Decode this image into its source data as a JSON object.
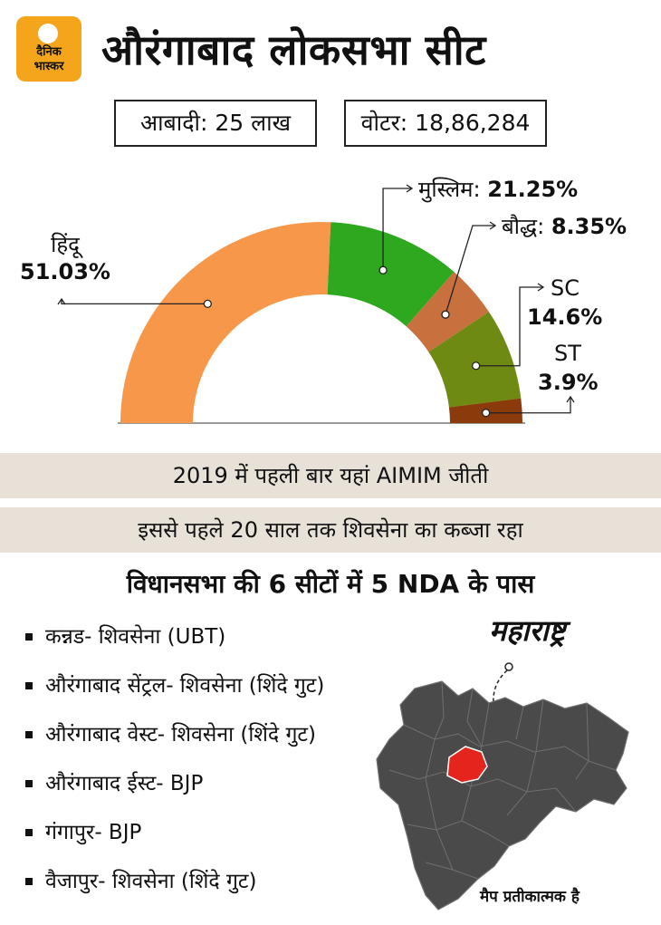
{
  "brand": {
    "logo_text_line1": "दैनिक",
    "logo_text_line2": "भास्कर"
  },
  "header": {
    "title": "औरंगाबाद लोकसभा सीट"
  },
  "stats": {
    "population": "आबादी: 25 लाख",
    "voters": "वोटर: 18,86,284"
  },
  "colors": {
    "hindu": "#f7974a",
    "muslim": "#2ea81f",
    "buddhist": "#c9703f",
    "sc": "#6e8a12",
    "st": "#8b3a0c",
    "band_bg": "#e7e1d7",
    "map_gray": "#4a4a4a",
    "map_highlight": "#e5241e"
  },
  "chart_data": {
    "type": "pie",
    "style": "half-donut",
    "slices": [
      {
        "label": "हिंदू",
        "value": 51.03,
        "value_label": "51.03%"
      },
      {
        "label": "मुस्लिम:",
        "value": 21.25,
        "value_label": "21.25%"
      },
      {
        "label": "बौद्ध:",
        "value": 8.35,
        "value_label": "8.35%"
      },
      {
        "label": "SC",
        "value": 14.6,
        "value_label": "14.6%"
      },
      {
        "label": "ST",
        "value": 3.9,
        "value_label": "3.9%"
      }
    ]
  },
  "facts": {
    "line1": "2019 में पहली बार यहां AIMIM जीती",
    "line2": "इससे पहले 20 साल तक शिवसेना का कब्जा रहा"
  },
  "assembly": {
    "heading": "विधानसभा की 6 सीटों में 5 NDA के पास",
    "seats": [
      "कन्नड- शिवसेना (UBT)",
      "औरंगाबाद सेंट्रल- शिवसेना (शिंदे गुट)",
      "औरंगाबाद वेस्ट- शिवसेना (शिंदे गुट)",
      "औरंगाबाद ईस्ट- BJP",
      "गंगापुर- BJP",
      "वैजापुर- शिवसेना (शिंदे गुट)"
    ]
  },
  "map": {
    "title": "महाराष्ट्र",
    "note": "मैप प्रतीकात्मक है"
  }
}
